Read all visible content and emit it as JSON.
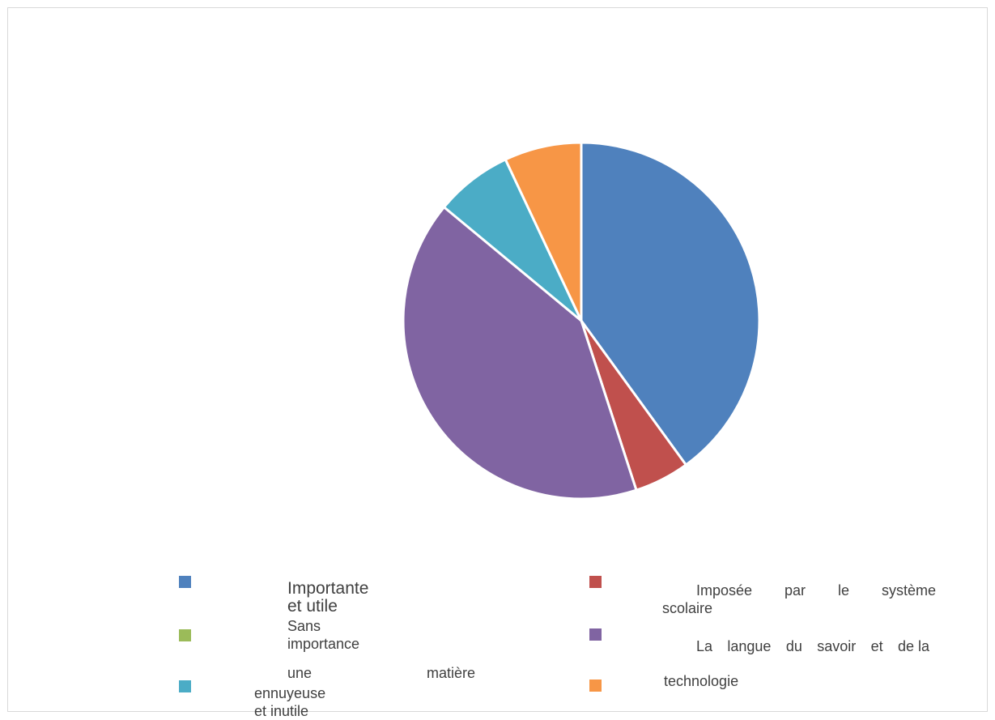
{
  "chart_data": {
    "type": "pie",
    "title": "",
    "start_angle_deg": 0,
    "direction": "clockwise",
    "slices": [
      {
        "label": "Importante et utile",
        "value": 40,
        "color": "#4f81bd"
      },
      {
        "label": "Imposée par le système scolaire",
        "value": 5,
        "color": "#c0504d"
      },
      {
        "label": "Sans importance",
        "value": 0,
        "color": "#9bbb59"
      },
      {
        "label": "La langue du savoir et de la technologie",
        "value": 41,
        "color": "#8064a2"
      },
      {
        "label": "une matière ennuyeuse et inutile",
        "value": 7,
        "color": "#4bacc6"
      },
      {
        "label": "",
        "value": 7,
        "color": "#f79646"
      }
    ],
    "legend": {
      "placement": "bottom",
      "items": [
        {
          "text": "Importante et utile",
          "color": "#4f81bd"
        },
        {
          "text": "Imposée par le système scolaire",
          "line1_words": [
            "Imposée",
            "par",
            "le",
            "système"
          ],
          "line2": "scolaire",
          "color": "#c0504d"
        },
        {
          "text": "Sans importance",
          "color": "#9bbb59"
        },
        {
          "text": "La langue du savoir et de la",
          "words": [
            "La",
            "langue",
            "du",
            "savoir",
            "et",
            "de la"
          ],
          "color": "#8064a2"
        },
        {
          "text": "une matière ennuyeuse et inutile",
          "line1_words": [
            "une",
            "matière"
          ],
          "line2": "ennuyeuse et inutile",
          "color": "#4bacc6"
        },
        {
          "text": "technologie",
          "color": "#f79646"
        }
      ]
    }
  }
}
